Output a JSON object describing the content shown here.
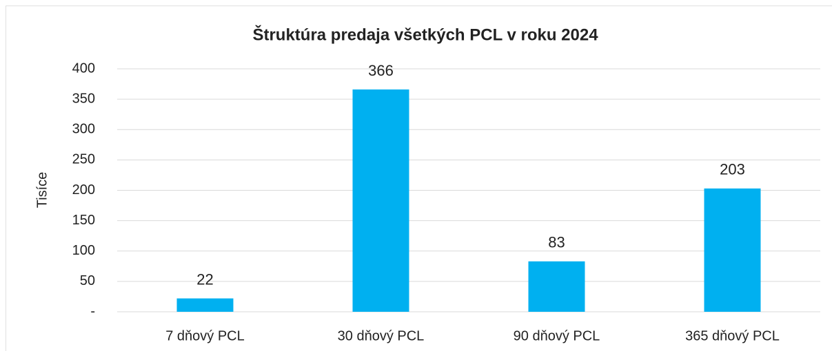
{
  "chart_data": {
    "type": "bar",
    "title": "Štruktúra predaja všetkých PCL v roku 2024",
    "y_label": "Tisíce",
    "categories": [
      "7 dňový PCL",
      "30 dňový PCL",
      "90 dňový PCL",
      "365 dňový PCL"
    ],
    "values": [
      22,
      366,
      83,
      203
    ],
    "color": "#00b0f0",
    "ylim": [
      0,
      400
    ],
    "yticks": [
      {
        "value": 0,
        "label": "-"
      },
      50,
      100,
      150,
      200,
      250,
      300,
      350,
      400
    ],
    "grid": true
  }
}
